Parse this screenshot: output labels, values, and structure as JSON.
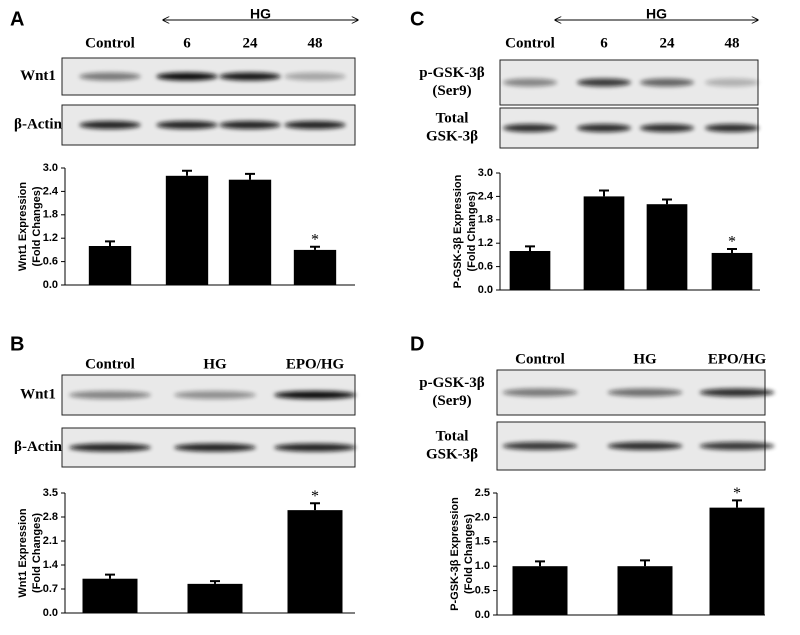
{
  "chart_data": [
    {
      "type": "bar",
      "panel": "A",
      "group_label": "HG",
      "categories": [
        "Control",
        "6",
        "24",
        "48"
      ],
      "blot_rows": [
        [
          "Wnt1"
        ],
        [
          "β-Actin"
        ]
      ],
      "ylabel": [
        "Wnt1 Expression",
        "(Fold Changes)"
      ],
      "values": [
        1.0,
        2.8,
        2.7,
        0.9
      ],
      "errors": [
        0.12,
        0.13,
        0.15,
        0.08
      ],
      "significance": [
        null,
        null,
        null,
        "*"
      ],
      "ylim": [
        0,
        3
      ],
      "yticks": [
        {
          "value": 0,
          "label": "0.0"
        },
        0.6,
        1.2,
        1.8,
        2.4,
        {
          "value": 3,
          "label": "3.0"
        }
      ],
      "color": "#000000"
    },
    {
      "type": "bar",
      "panel": "B",
      "categories": [
        "Control",
        "HG",
        "EPO/HG"
      ],
      "blot_rows": [
        [
          "Wnt1"
        ],
        [
          "β-Actin"
        ]
      ],
      "ylabel": [
        "Wnt1 Expression",
        "(Fold Changes)"
      ],
      "values": [
        1.0,
        0.85,
        3.0
      ],
      "errors": [
        0.12,
        0.08,
        0.2
      ],
      "significance": [
        null,
        null,
        "*"
      ],
      "ylim": [
        0,
        3.5
      ],
      "yticks": [
        {
          "value": 0,
          "label": "0.0"
        },
        0.7,
        1.4,
        2.1,
        2.8,
        3.5
      ],
      "color": "#000000"
    },
    {
      "type": "bar",
      "panel": "C",
      "group_label": "HG",
      "categories": [
        "Control",
        "6",
        "24",
        "48"
      ],
      "blot_rows": [
        [
          "p-GSK-3β",
          "(Ser9)"
        ],
        [
          "Total",
          "GSK-3β"
        ]
      ],
      "ylabel": [
        "P-GSK-3β Expression",
        "(Fold Changes)"
      ],
      "values": [
        1.0,
        2.4,
        2.2,
        0.95
      ],
      "errors": [
        0.12,
        0.15,
        0.12,
        0.1
      ],
      "significance": [
        null,
        null,
        null,
        "*"
      ],
      "ylim": [
        0,
        3
      ],
      "yticks": [
        {
          "value": 0,
          "label": "0.0"
        },
        0.6,
        1.2,
        1.8,
        2.4,
        {
          "value": 3,
          "label": "3.0"
        }
      ],
      "color": "#000000"
    },
    {
      "type": "bar",
      "panel": "D",
      "categories": [
        "Control",
        "HG",
        "EPO/HG"
      ],
      "blot_rows": [
        [
          "p-GSK-3β",
          "(Ser9)"
        ],
        [
          "Total",
          "GSK-3β"
        ]
      ],
      "ylabel": [
        "P-GSK-3β Expression",
        "(Fold Changes)"
      ],
      "values": [
        1.0,
        1.0,
        2.2
      ],
      "errors": [
        0.1,
        0.12,
        0.15
      ],
      "significance": [
        null,
        null,
        "*"
      ],
      "ylim": [
        0,
        2.5
      ],
      "yticks": [
        {
          "value": 0,
          "label": "0.0"
        },
        0.5,
        {
          "value": 1,
          "label": "1.0"
        },
        1.5,
        {
          "value": 2,
          "label": "2.0"
        },
        2.5
      ],
      "color": "#000000"
    }
  ]
}
